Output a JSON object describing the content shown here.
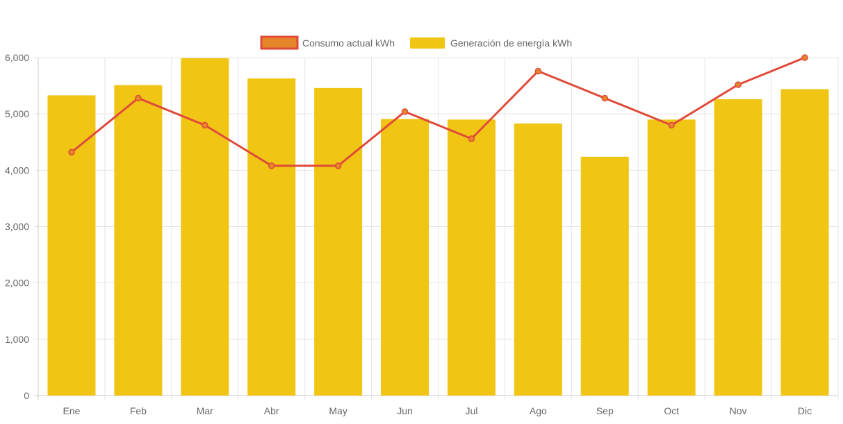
{
  "chart_data": {
    "type": "bar",
    "categories": [
      "Ene",
      "Feb",
      "Mar",
      "Abr",
      "May",
      "Jun",
      "Jul",
      "Ago",
      "Sep",
      "Oct",
      "Nov",
      "Dic"
    ],
    "series": [
      {
        "name": "Consumo actual kWh",
        "type": "line",
        "values": [
          4320,
          5280,
          4800,
          4080,
          4080,
          5040,
          4560,
          5760,
          5280,
          4800,
          5520,
          6000
        ],
        "color": "#e04a3a",
        "point_fill": "#e6862a"
      },
      {
        "name": "Generación de energía kWh",
        "type": "bar",
        "values": [
          5330,
          5510,
          5990,
          5630,
          5460,
          4910,
          4900,
          4830,
          4240,
          4900,
          5260,
          5440
        ],
        "color": "#f0c514"
      }
    ],
    "y_ticks": [
      "0",
      "1,000",
      "2,000",
      "3,000",
      "4,000",
      "5,000",
      "6,000"
    ],
    "ylim": [
      0,
      6000
    ],
    "grid": true,
    "legend_position": "top-center"
  }
}
